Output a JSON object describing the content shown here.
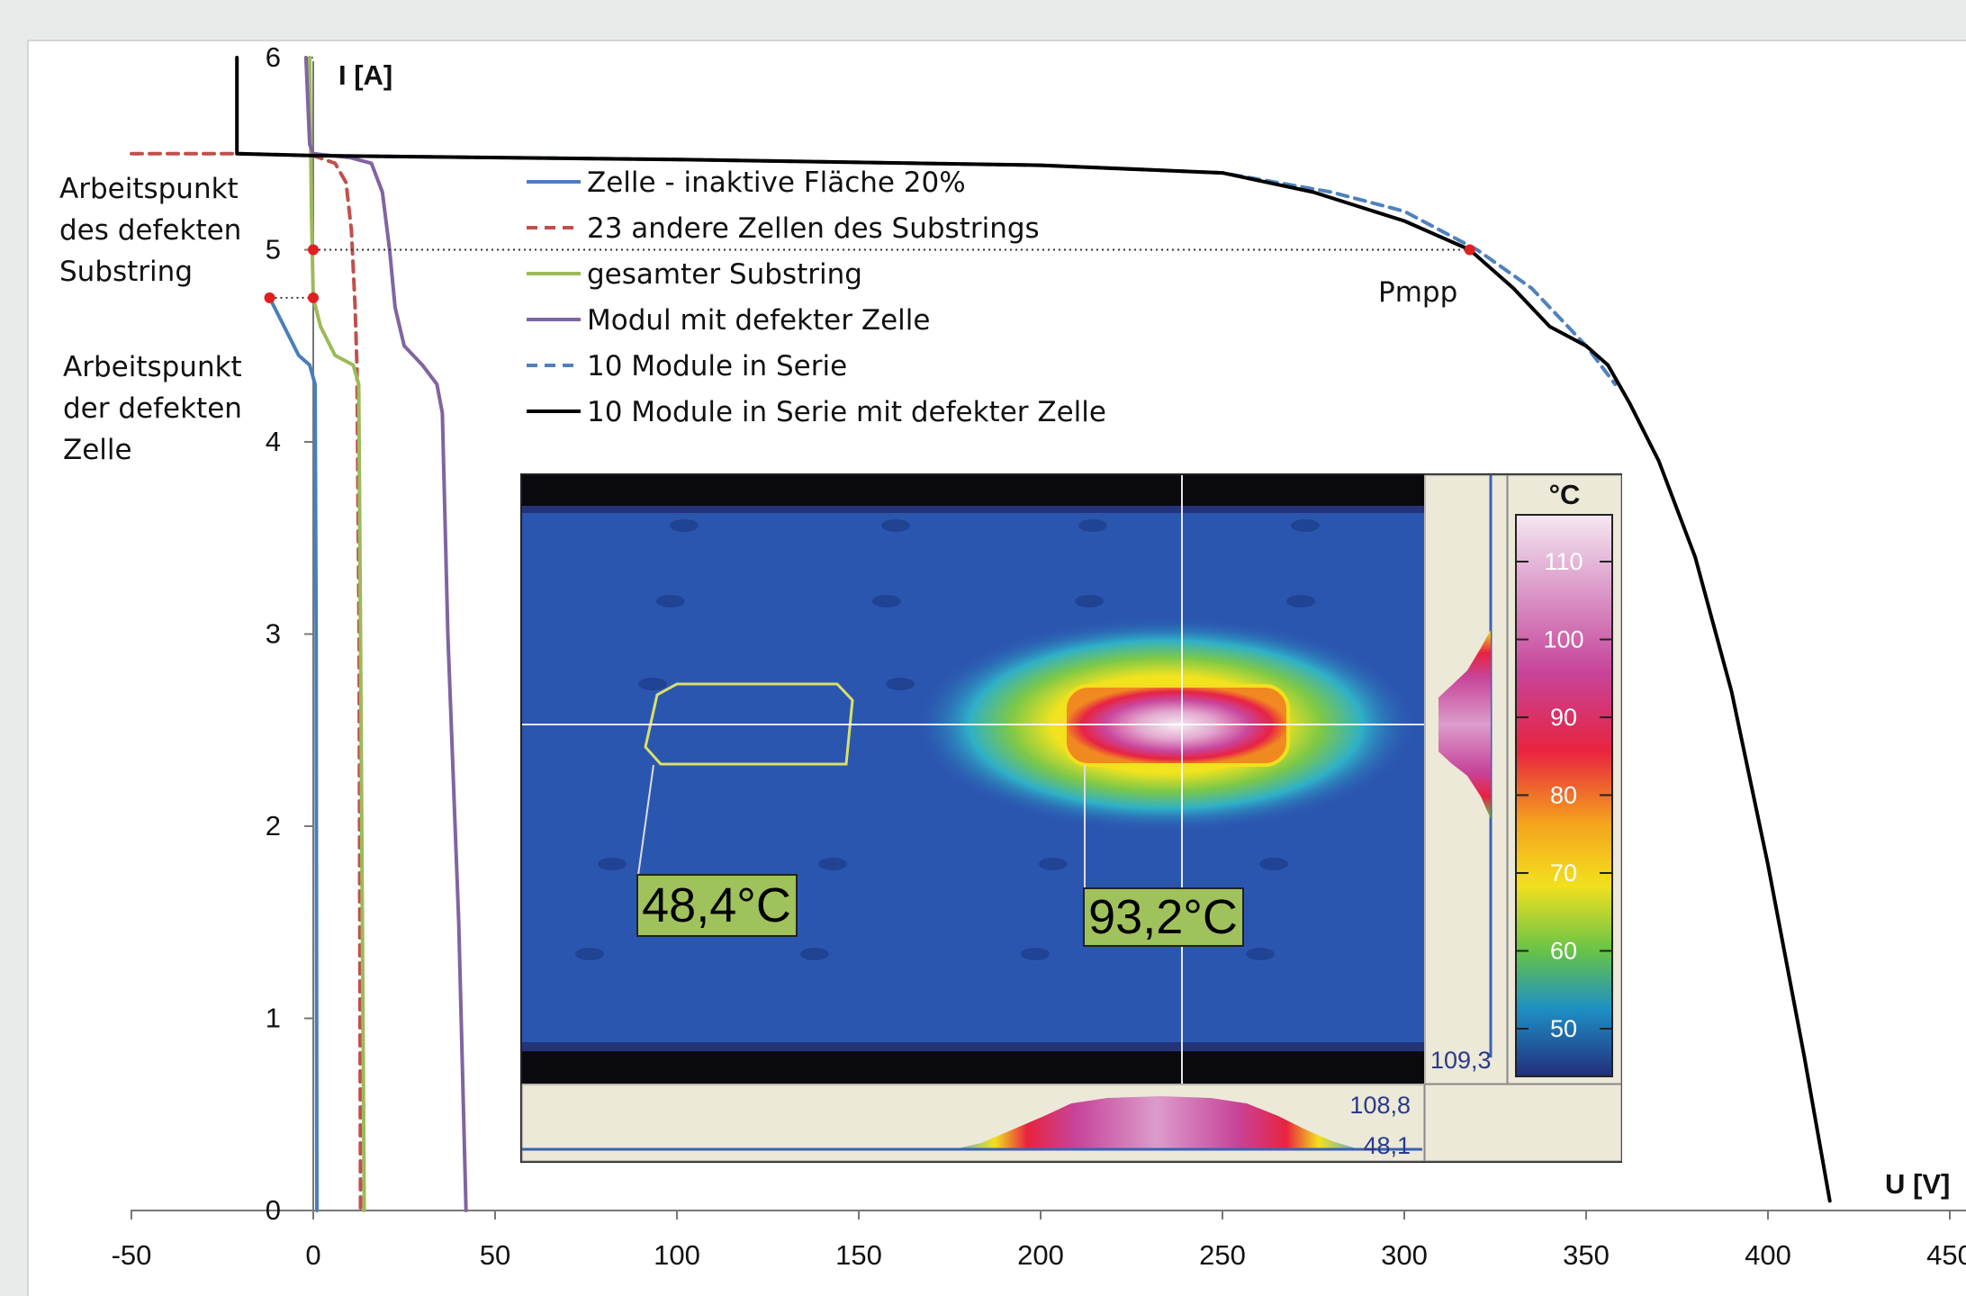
{
  "chart_data": {
    "type": "line",
    "xlabel": "U [V]",
    "ylabel": "I [A]",
    "xlim": [
      -50,
      450
    ],
    "ylim": [
      0,
      6
    ],
    "x_ticks": [
      "-50",
      "0",
      "50",
      "100",
      "150",
      "200",
      "250",
      "300",
      "350",
      "400",
      "450"
    ],
    "y_ticks": [
      "0",
      "1",
      "2",
      "3",
      "4",
      "5",
      "6"
    ],
    "series": [
      {
        "name": "Zelle - inaktive Fläche 20%",
        "color": "#4a7ebb",
        "dash": "solid",
        "points": [
          [
            -12,
            4.75
          ],
          [
            -8,
            4.6
          ],
          [
            -4,
            4.45
          ],
          [
            -1,
            4.4
          ],
          [
            0.5,
            4.3
          ],
          [
            0.8,
            3.0
          ],
          [
            1,
            0
          ]
        ]
      },
      {
        "name": "23 andere Zellen des Substrings",
        "color": "#c0504d",
        "dash": "dashed",
        "points": [
          [
            -50,
            5.5
          ],
          [
            -20,
            5.5
          ],
          [
            0,
            5.49
          ],
          [
            6,
            5.45
          ],
          [
            9,
            5.35
          ],
          [
            10.5,
            5.1
          ],
          [
            11.5,
            4.7
          ],
          [
            12,
            4.4
          ],
          [
            12.6,
            3.0
          ],
          [
            13,
            0
          ]
        ]
      },
      {
        "name": "gesamter Substring",
        "color": "#9bbb59",
        "dash": "solid",
        "points": [
          [
            -1,
            6.0
          ],
          [
            -0.5,
            5.2
          ],
          [
            0,
            4.75
          ],
          [
            2,
            4.6
          ],
          [
            6,
            4.45
          ],
          [
            11,
            4.4
          ],
          [
            12.5,
            4.3
          ],
          [
            13,
            3.0
          ],
          [
            14,
            0
          ]
        ]
      },
      {
        "name": "Modul mit defekter Zelle",
        "color": "#8064a2",
        "dash": "solid",
        "points": [
          [
            -2,
            6.0
          ],
          [
            -1,
            5.55
          ],
          [
            0,
            5.5
          ],
          [
            10,
            5.48
          ],
          [
            16,
            5.45
          ],
          [
            19,
            5.3
          ],
          [
            21,
            5.0
          ],
          [
            22.5,
            4.7
          ],
          [
            25,
            4.5
          ],
          [
            30,
            4.4
          ],
          [
            34,
            4.3
          ],
          [
            35.5,
            4.15
          ],
          [
            37,
            3.0
          ],
          [
            40,
            1.5
          ],
          [
            42,
            0
          ]
        ]
      },
      {
        "name": "10 Module in Serie",
        "color": "#4f81bd",
        "dash": "dashed",
        "points": [
          [
            0,
            5.49
          ],
          [
            100,
            5.47
          ],
          [
            200,
            5.44
          ],
          [
            250,
            5.4
          ],
          [
            280,
            5.3
          ],
          [
            300,
            5.2
          ],
          [
            320,
            5.0
          ],
          [
            335,
            4.8
          ],
          [
            350,
            4.5
          ],
          [
            358,
            4.3
          ]
        ]
      },
      {
        "name": "10 Module in Serie mit defekter Zelle",
        "color": "#000000",
        "dash": "solid",
        "points": [
          [
            -21,
            6.0
          ],
          [
            -21,
            5.5
          ],
          [
            0,
            5.49
          ],
          [
            100,
            5.47
          ],
          [
            200,
            5.44
          ],
          [
            250,
            5.4
          ],
          [
            275,
            5.3
          ],
          [
            300,
            5.15
          ],
          [
            318,
            5.0
          ],
          [
            330,
            4.8
          ],
          [
            340,
            4.6
          ],
          [
            350,
            4.5
          ],
          [
            356,
            4.4
          ],
          [
            359,
            4.3
          ],
          [
            362,
            4.2
          ],
          [
            370,
            3.9
          ],
          [
            380,
            3.4
          ],
          [
            390,
            2.7
          ],
          [
            400,
            1.8
          ],
          [
            410,
            0.8
          ],
          [
            417,
            0.05
          ]
        ]
      }
    ],
    "markers": {
      "color": "#e02020",
      "points": [
        [
          318,
          5.0
        ],
        [
          0,
          5.0
        ],
        [
          -12,
          4.75
        ],
        [
          0,
          4.75
        ]
      ],
      "guides": [
        [
          [
            0,
            5.0
          ],
          [
            318,
            5.0
          ]
        ],
        [
          [
            -12,
            4.75
          ],
          [
            0,
            4.75
          ]
        ]
      ]
    },
    "annotations": [
      {
        "key": "pmpp",
        "text": "Pmpp"
      },
      {
        "key": "substring",
        "lines": [
          "Arbeitspunkt",
          "des defekten",
          "Substring"
        ]
      },
      {
        "key": "zelle",
        "lines": [
          "Arbeitspunkt",
          "der defekten",
          "Zelle"
        ]
      }
    ],
    "legend_position": "upper-middle",
    "grid": false
  },
  "thermal_inset": {
    "scale_unit": "°C",
    "scale_labels": [
      "110",
      "100",
      "90",
      "80",
      "70",
      "60",
      "50"
    ],
    "scale_colors": [
      "#f4e8f0",
      "#dc9ccb",
      "#c7449a",
      "#e8233f",
      "#f5a41e",
      "#f2e01e",
      "#63c24a",
      "#1e8fc5",
      "#232e7c"
    ],
    "readout_right": "109,3",
    "readout_bottom_max": "108,8",
    "readout_bottom_min": "48,1",
    "measurements": [
      {
        "key": "reference",
        "text": "48,4°C"
      },
      {
        "key": "hotspot",
        "text": "93,2°C"
      }
    ]
  }
}
